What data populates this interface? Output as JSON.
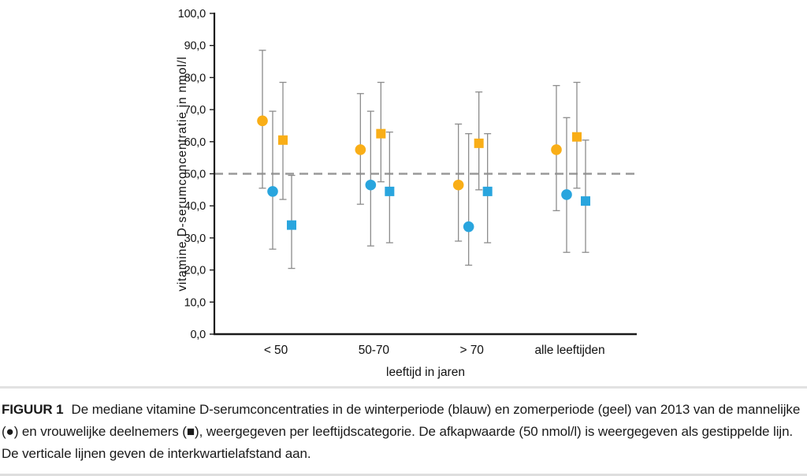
{
  "figure": {
    "caption_label": "FIGUUR 1",
    "caption_text": "De mediane vitamine D-serumconcentraties in de winterperiode (blauw) en zomerperiode (geel) van 2013 van de mannelijke (●) en vrouwelijke deelnemers (■), weergegeven per leeftijdscategorie. De afkapwaarde (50 nmol/l) is weergegeven als gestippelde lijn. De verticale lijnen geven de interkwartielafstand aan."
  },
  "chart_data": {
    "type": "scatter",
    "title": "",
    "xlabel": "leeftijd in jaren",
    "ylabel": "vitamine D-serumconcentratie in nmol/l",
    "ylim": [
      0,
      100
    ],
    "grid": false,
    "legend_position": "none",
    "categories": [
      "< 50",
      "50-70",
      "> 70",
      "alle leeftijden"
    ],
    "yticks": [
      {
        "value": 0,
        "label": "0,0"
      },
      {
        "value": 10,
        "label": "10,0"
      },
      {
        "value": 20,
        "label": "20,0"
      },
      {
        "value": 30,
        "label": "30,0"
      },
      {
        "value": 40,
        "label": "40,0"
      },
      {
        "value": 50,
        "label": "50,0"
      },
      {
        "value": 60,
        "label": "60,0"
      },
      {
        "value": 70,
        "label": "70,0"
      },
      {
        "value": 80,
        "label": "80,0"
      },
      {
        "value": 90,
        "label": "90,0"
      },
      {
        "value": 100,
        "label": "100,0"
      }
    ],
    "reference_line": {
      "value": 50,
      "style": "dashed"
    },
    "error_bars": "interkwartielafstand (q1 tot q3)",
    "series": [
      {
        "id": "zomer-mannelijk",
        "name": "zomerperiode, mannelijke deelnemers",
        "marker": "circle",
        "color": "#F9AE17",
        "median": [
          66.5,
          57.5,
          46.5,
          57.5
        ],
        "q1": [
          45.5,
          40.5,
          29.0,
          38.5
        ],
        "q3": [
          88.5,
          75.0,
          65.5,
          77.5
        ]
      },
      {
        "id": "winter-mannelijk",
        "name": "winterperiode, mannelijke deelnemers",
        "marker": "circle",
        "color": "#29A5DE",
        "median": [
          44.5,
          46.5,
          33.5,
          43.5
        ],
        "q1": [
          26.5,
          27.5,
          21.5,
          25.5
        ],
        "q3": [
          69.5,
          69.5,
          62.5,
          67.5
        ]
      },
      {
        "id": "zomer-vrouwelijk",
        "name": "zomerperiode, vrouwelijke deelnemers",
        "marker": "square",
        "color": "#F9AE17",
        "median": [
          60.5,
          62.5,
          59.5,
          61.5
        ],
        "q1": [
          42.0,
          47.5,
          45.0,
          45.5
        ],
        "q3": [
          78.5,
          78.5,
          75.5,
          78.5
        ]
      },
      {
        "id": "winter-vrouwelijk",
        "name": "winterperiode, vrouwelijke deelnemers",
        "marker": "square",
        "color": "#29A5DE",
        "median": [
          34.0,
          44.5,
          44.5,
          41.5
        ],
        "q1": [
          20.5,
          28.5,
          28.5,
          25.5
        ],
        "q3": [
          49.5,
          63.0,
          62.5,
          60.5
        ]
      }
    ],
    "colors": {
      "zomer": "#F9AE17",
      "winter": "#29A5DE",
      "error_bar": "#8C8C8C",
      "reference_line": "#999999",
      "axis": "#1A1A1A"
    }
  }
}
